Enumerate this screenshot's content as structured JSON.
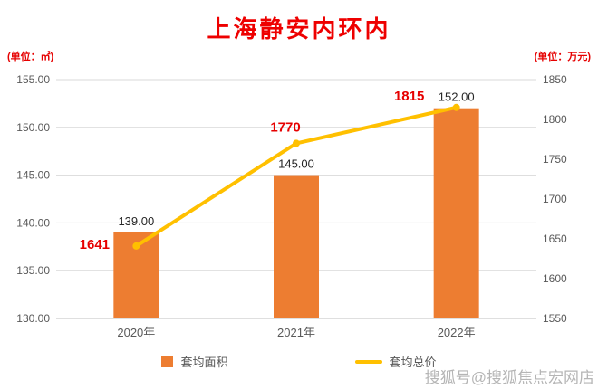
{
  "page": {
    "background": "#ffffff"
  },
  "chart_data": {
    "type": "combo",
    "title": "上海静安内环内",
    "categories": [
      "2020年",
      "2021年",
      "2022年"
    ],
    "series": [
      {
        "name": "套均面积",
        "type": "bar",
        "axis": "left",
        "values": [
          139,
          145,
          152
        ],
        "labels": [
          "139.00",
          "145.00",
          "152.00"
        ],
        "color": "#ED7D31"
      },
      {
        "name": "套均总价",
        "type": "line",
        "axis": "right",
        "values": [
          1641,
          1770,
          1815
        ],
        "labels": [
          "1641",
          "1770",
          "1815"
        ],
        "color": "#FFC000"
      }
    ],
    "left_axis": {
      "unit": "(单位：㎡)",
      "min": 130,
      "max": 155,
      "ticks": [
        "130.00",
        "135.00",
        "140.00",
        "145.00",
        "150.00",
        "155.00"
      ]
    },
    "right_axis": {
      "unit": "(单位：万元)",
      "min": 1550,
      "max": 1850,
      "ticks": [
        "1550",
        "1600",
        "1650",
        "1700",
        "1750",
        "1800",
        "1850"
      ]
    },
    "legend_position": "bottom",
    "grid": true
  },
  "colors": {
    "title": "#ee0000",
    "value_label": "#e60000",
    "bar_label": "#262626",
    "axis_text": "#595959",
    "gridline": "#d9d9d9",
    "axis_line": "#bfbfbf",
    "watermark": "#a3a3a3"
  },
  "watermark": {
    "text": "搜狐号@搜狐焦点宏网店"
  }
}
